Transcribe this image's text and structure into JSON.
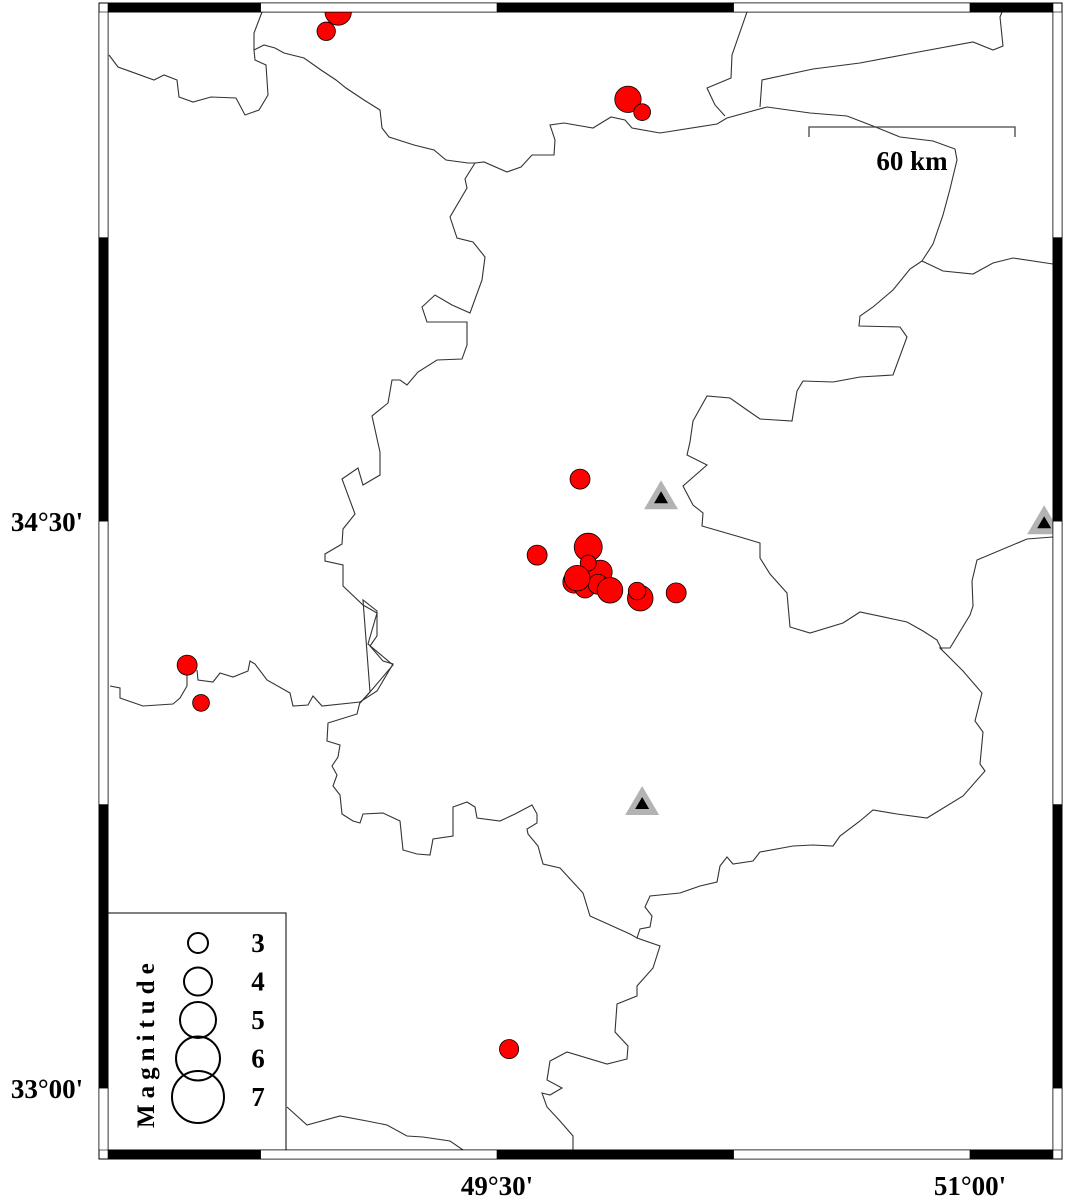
{
  "map": {
    "lon_range": [
      48.266,
      51.263
    ],
    "lat_range": [
      32.836,
      35.847
    ],
    "frame_tick_interval_deg": 0.75,
    "x_tick_labels": [
      {
        "lon": 49.5,
        "text": "49°30'"
      },
      {
        "lon": 51.0,
        "text": "51°00'"
      }
    ],
    "y_tick_labels": [
      {
        "lat": 34.5,
        "text": "34°30'"
      },
      {
        "lat": 33.0,
        "text": "33°00'"
      }
    ],
    "scale_bar": {
      "label": "60 km",
      "length_km": 60
    }
  },
  "colors": {
    "event_fill": "#ff0000",
    "event_stroke": "#000000",
    "station_outer": "#b3b3b3",
    "station_inner": "#000000",
    "boundary": "#333333"
  },
  "legend": {
    "title": "Magnitude",
    "entries": [
      {
        "mag": 3,
        "label": "3"
      },
      {
        "mag": 4,
        "label": "4"
      },
      {
        "mag": 5,
        "label": "5"
      },
      {
        "mag": 6,
        "label": "6"
      },
      {
        "mag": 7,
        "label": "7"
      }
    ]
  },
  "events": [
    {
      "lon": 48.996,
      "lat": 35.847,
      "mag": 3.8
    },
    {
      "lon": 48.958,
      "lat": 35.796,
      "mag": 2.8
    },
    {
      "lon": 49.915,
      "lat": 35.616,
      "mag": 3.8
    },
    {
      "lon": 49.96,
      "lat": 35.582,
      "mag": 2.6
    },
    {
      "lon": 49.763,
      "lat": 34.611,
      "mag": 3.0
    },
    {
      "lon": 49.627,
      "lat": 34.41,
      "mag": 3.0
    },
    {
      "lon": 49.789,
      "lat": 34.431,
      "mag": 4.0
    },
    {
      "lon": 49.827,
      "lat": 34.365,
      "mag": 3.5
    },
    {
      "lon": 49.744,
      "lat": 34.339,
      "mag": 3.3
    },
    {
      "lon": 49.779,
      "lat": 34.323,
      "mag": 3.0
    },
    {
      "lon": 49.82,
      "lat": 34.333,
      "mag": 3.0
    },
    {
      "lon": 49.858,
      "lat": 34.317,
      "mag": 3.7
    },
    {
      "lon": 49.954,
      "lat": 34.296,
      "mag": 3.7
    },
    {
      "lon": 49.944,
      "lat": 34.315,
      "mag": 2.7
    },
    {
      "lon": 49.789,
      "lat": 34.389,
      "mag": 2.5
    },
    {
      "lon": 49.754,
      "lat": 34.349,
      "mag": 3.7
    },
    {
      "lon": 50.068,
      "lat": 34.31,
      "mag": 3.0
    },
    {
      "lon": 48.517,
      "lat": 34.119,
      "mag": 3.0
    },
    {
      "lon": 48.561,
      "lat": 34.019,
      "mag": 2.6
    },
    {
      "lon": 49.538,
      "lat": 33.103,
      "mag": 2.9
    }
  ],
  "stations": [
    {
      "lon": 50.02,
      "lat": 34.563
    },
    {
      "lon": 49.96,
      "lat": 33.754
    },
    {
      "lon": 51.235,
      "lat": 34.497
    }
  ]
}
